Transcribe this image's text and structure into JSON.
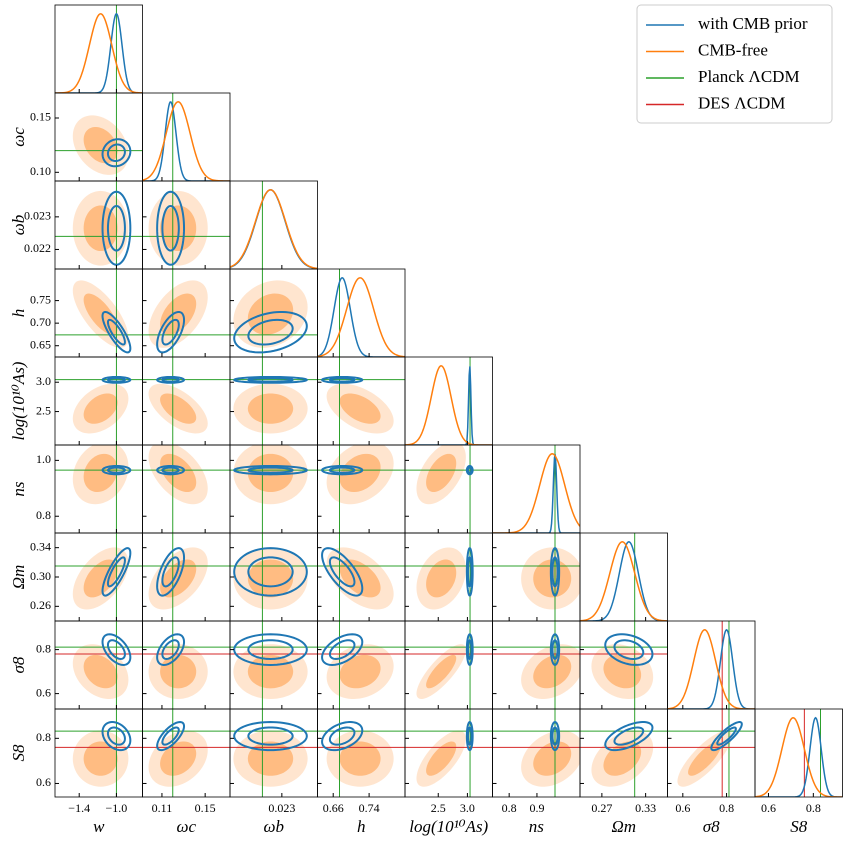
{
  "chart_data": {
    "type": "corner",
    "parameters": [
      {
        "label": "w",
        "lim": [
          -1.66,
          -0.72
        ],
        "xticks": [
          {
            "value": -1.4,
            "label": "−1.4"
          },
          {
            "value": -1.0,
            "label": "−1.0"
          }
        ]
      },
      {
        "label": "ωc",
        "lim": [
          0.092,
          0.173
        ],
        "xticks": [
          0.11,
          0.15
        ],
        "yticks": [
          {
            "value": 0.1,
            "label": "0.10"
          },
          0.15
        ]
      },
      {
        "label": "ωb",
        "lim": [
          0.0214,
          0.0241
        ],
        "xticks": [
          0.023
        ],
        "yticks": [
          0.022,
          0.023
        ]
      },
      {
        "label": "h",
        "lim": [
          0.625,
          0.82
        ],
        "xticks": [
          0.66,
          0.74
        ],
        "yticks": [
          0.65,
          {
            "value": 0.7,
            "label": "0.70"
          },
          0.75
        ]
      },
      {
        "label": "log(10¹⁰As)",
        "lim": [
          1.93,
          3.43
        ],
        "xticks": [
          2.5,
          {
            "value": 3,
            "label": "3.0"
          }
        ],
        "yticks": [
          2.5,
          {
            "value": 3,
            "label": "3.0"
          }
        ]
      },
      {
        "label": "ns",
        "lim": [
          0.74,
          1.055
        ],
        "xticks": [
          0.8,
          0.9
        ],
        "yticks": [
          0.8,
          {
            "value": 1,
            "label": "1.0"
          }
        ]
      },
      {
        "label": "Ωm",
        "lim": [
          0.24,
          0.36
        ],
        "xticks": [
          0.27,
          0.33
        ],
        "yticks": [
          0.26,
          {
            "value": 0.3,
            "label": "0.30"
          },
          0.34
        ]
      },
      {
        "label": "σ8",
        "lim": [
          0.53,
          0.93
        ],
        "xticks": [
          0.6,
          0.8
        ],
        "yticks": [
          0.6,
          0.8
        ]
      },
      {
        "label": "S8",
        "lim": [
          0.54,
          0.93
        ],
        "xticks": [
          0.6,
          0.8
        ],
        "yticks": [
          0.6,
          0.8
        ]
      }
    ],
    "series": [
      {
        "name": "with CMB prior",
        "color": "#1f77b4",
        "filled": false,
        "mean": [
          -1.0,
          0.118,
          0.02265,
          0.68,
          3.04,
          0.965,
          0.307,
          0.8,
          0.81
        ],
        "sd": [
          0.06,
          0.005,
          0.00045,
          0.018,
          0.02,
          0.006,
          0.013,
          0.028,
          0.025
        ],
        "corr": [
          [
            0.1
          ],
          [
            0,
            0
          ],
          [
            -0.8,
            0.6,
            0.3
          ],
          [
            0,
            0,
            0,
            0
          ],
          [
            0,
            0,
            0,
            0,
            0
          ],
          [
            0.8,
            0.6,
            0,
            -0.7,
            0,
            0
          ],
          [
            -0.5,
            0.5,
            0,
            0.5,
            0,
            0,
            -0.3
          ],
          [
            -0.3,
            0.7,
            0,
            0.4,
            0,
            0,
            0.6,
            0.85
          ]
        ]
      },
      {
        "name": "CMB-free",
        "color": "#ff7f0e",
        "filled": true,
        "mean": [
          -1.17,
          0.125,
          0.02265,
          0.72,
          2.55,
          0.955,
          0.298,
          0.7,
          0.71
        ],
        "sd": [
          0.12,
          0.011,
          0.00046,
          0.03,
          0.17,
          0.045,
          0.017,
          0.05,
          0.05
        ],
        "corr": [
          [
            -0.3
          ],
          [
            0,
            0
          ],
          [
            -0.7,
            0.5,
            0.2
          ],
          [
            0.4,
            -0.6,
            0,
            -0.5
          ],
          [
            0.2,
            -0.5,
            0,
            0.3,
            0.5
          ],
          [
            0.5,
            0.5,
            0,
            -0.5,
            0.3,
            0
          ],
          [
            -0.3,
            0,
            0,
            0.2,
            0.8,
            0.3,
            -0.2
          ],
          [
            0,
            0.3,
            0,
            0,
            0.7,
            0.3,
            0.4,
            0.8
          ]
        ]
      }
    ],
    "references": [
      {
        "name": "Planck ΛCDM",
        "color": "#2ca02c",
        "values": [
          -1,
          0.12,
          0.0224,
          0.674,
          3.045,
          0.965,
          0.315,
          0.811,
          0.832
        ]
      },
      {
        "name": "DES ΛCDM",
        "color": "#d62728",
        "values": [
          null,
          null,
          null,
          null,
          null,
          null,
          null,
          0.78,
          0.76
        ]
      }
    ]
  }
}
